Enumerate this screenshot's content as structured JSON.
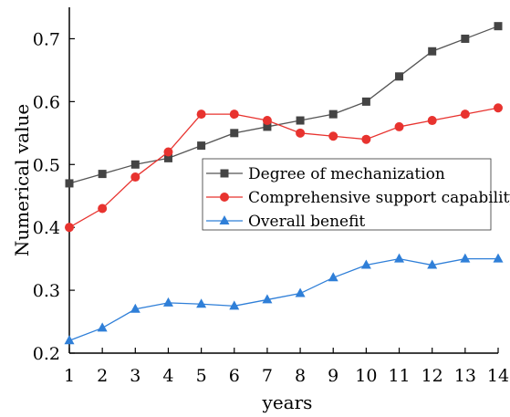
{
  "chart_data": {
    "type": "line",
    "xlabel": "years",
    "ylabel": "Numerical value",
    "x": [
      1,
      2,
      3,
      4,
      5,
      6,
      7,
      8,
      9,
      10,
      11,
      12,
      13,
      14
    ],
    "xlim": [
      1,
      14
    ],
    "ylim": [
      0.2,
      0.75
    ],
    "yticks": [
      "0.2",
      "0.3",
      "0.4",
      "0.5",
      "0.6",
      "0.7"
    ],
    "grid": false,
    "legend_position": "center-right",
    "series": [
      {
        "name": "Degree of mechanization",
        "marker": "square",
        "color": "#555555",
        "marker_color": "#444444",
        "values": [
          0.47,
          0.485,
          0.5,
          0.51,
          0.53,
          0.55,
          0.56,
          0.57,
          0.58,
          0.6,
          0.64,
          0.68,
          0.7,
          0.72
        ]
      },
      {
        "name": "Comprehensive support capability",
        "marker": "circle",
        "color": "#e8332f",
        "marker_color": "#e8332f",
        "values": [
          0.4,
          0.43,
          0.48,
          0.52,
          0.58,
          0.58,
          0.57,
          0.55,
          0.545,
          0.54,
          0.56,
          0.57,
          0.58,
          0.59
        ]
      },
      {
        "name": "Overall benefit",
        "marker": "triangle",
        "color": "#2f7fd8",
        "marker_color": "#2f7fd8",
        "values": [
          0.22,
          0.24,
          0.27,
          0.28,
          0.278,
          0.275,
          0.285,
          0.295,
          0.32,
          0.34,
          0.35,
          0.34,
          0.35,
          0.35
        ]
      }
    ]
  }
}
